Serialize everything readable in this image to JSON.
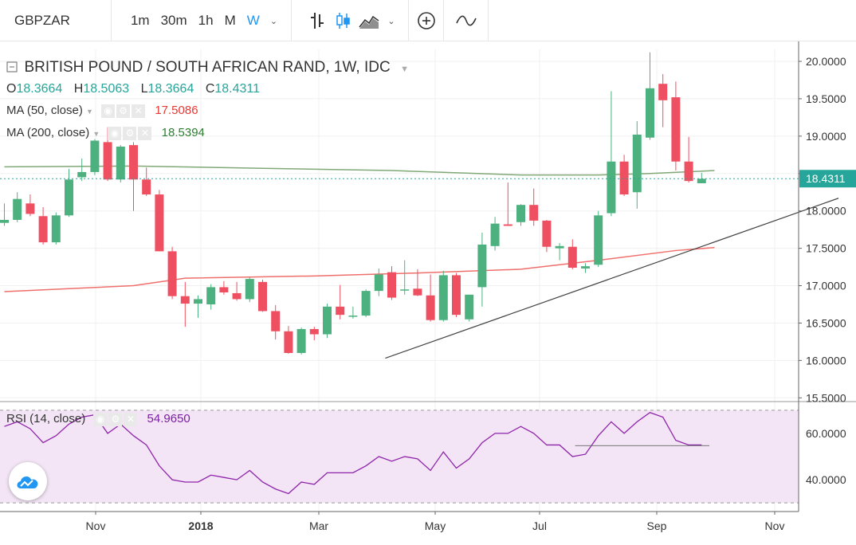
{
  "toolbar": {
    "symbol": "GBPZAR",
    "intervals": [
      "1m",
      "30m",
      "1h",
      "M",
      "W"
    ],
    "active_interval": "W"
  },
  "legend": {
    "title": "BRITISH POUND / SOUTH AFRICAN RAND, 1W, IDC",
    "ohlc": [
      {
        "k": "O",
        "v": "18.3664"
      },
      {
        "k": "H",
        "v": "18.5063"
      },
      {
        "k": "L",
        "v": "18.3664"
      },
      {
        "k": "C",
        "v": "18.4311"
      }
    ],
    "ma50": {
      "label": "MA (50, close)",
      "value": "17.5086",
      "color": "#e53935"
    },
    "ma200": {
      "label": "MA (200, close)",
      "value": "18.5394",
      "color": "#2e7d32"
    },
    "rsi": {
      "label": "RSI (14, close)",
      "value": "54.9650",
      "color": "#7b1fa2"
    }
  },
  "chart_data": {
    "type": "candlestick",
    "price_axis": [
      "20.0000",
      "19.5000",
      "19.0000",
      "18.5000",
      "18.0000",
      "17.5000",
      "17.0000",
      "16.5000",
      "16.0000",
      "15.5000"
    ],
    "price_range": [
      15.45,
      20.16
    ],
    "last_price": "18.4311",
    "time_axis": [
      "Nov",
      "2018",
      "Mar",
      "May",
      "Jul",
      "Sep",
      "Nov"
    ],
    "candles": [
      {
        "o": 17.84,
        "h": 18.1,
        "l": 17.8,
        "c": 17.88
      },
      {
        "o": 17.88,
        "h": 18.25,
        "l": 17.85,
        "c": 18.16
      },
      {
        "o": 18.1,
        "h": 18.22,
        "l": 17.93,
        "c": 17.96
      },
      {
        "o": 17.93,
        "h": 18.05,
        "l": 17.55,
        "c": 17.58
      },
      {
        "o": 17.58,
        "h": 17.98,
        "l": 17.55,
        "c": 17.94
      },
      {
        "o": 17.94,
        "h": 18.56,
        "l": 17.92,
        "c": 18.42
      },
      {
        "o": 18.45,
        "h": 18.7,
        "l": 18.4,
        "c": 18.52
      },
      {
        "o": 18.52,
        "h": 18.96,
        "l": 18.48,
        "c": 18.94
      },
      {
        "o": 18.92,
        "h": 19.12,
        "l": 18.4,
        "c": 18.42
      },
      {
        "o": 18.42,
        "h": 18.88,
        "l": 18.38,
        "c": 18.86
      },
      {
        "o": 18.88,
        "h": 18.92,
        "l": 18.0,
        "c": 18.42
      },
      {
        "o": 18.42,
        "h": 18.58,
        "l": 18.2,
        "c": 18.22
      },
      {
        "o": 18.22,
        "h": 18.28,
        "l": 17.46,
        "c": 17.46
      },
      {
        "o": 17.46,
        "h": 17.52,
        "l": 16.82,
        "c": 16.86
      },
      {
        "o": 16.86,
        "h": 17.05,
        "l": 16.45,
        "c": 16.76
      },
      {
        "o": 16.76,
        "h": 16.87,
        "l": 16.57,
        "c": 16.82
      },
      {
        "o": 16.75,
        "h": 17.02,
        "l": 16.68,
        "c": 16.98
      },
      {
        "o": 16.98,
        "h": 17.06,
        "l": 16.88,
        "c": 16.91
      },
      {
        "o": 16.9,
        "h": 17.05,
        "l": 16.8,
        "c": 16.82
      },
      {
        "o": 16.82,
        "h": 17.12,
        "l": 16.78,
        "c": 17.09
      },
      {
        "o": 17.05,
        "h": 17.08,
        "l": 16.65,
        "c": 16.66
      },
      {
        "o": 16.66,
        "h": 16.74,
        "l": 16.28,
        "c": 16.39
      },
      {
        "o": 16.39,
        "h": 16.46,
        "l": 16.09,
        "c": 16.1
      },
      {
        "o": 16.1,
        "h": 16.44,
        "l": 16.08,
        "c": 16.42
      },
      {
        "o": 16.42,
        "h": 16.45,
        "l": 16.27,
        "c": 16.35
      },
      {
        "o": 16.35,
        "h": 16.76,
        "l": 16.3,
        "c": 16.72
      },
      {
        "o": 16.72,
        "h": 17.01,
        "l": 16.55,
        "c": 16.61
      },
      {
        "o": 16.6,
        "h": 16.72,
        "l": 16.56,
        "c": 16.6
      },
      {
        "o": 16.6,
        "h": 16.95,
        "l": 16.58,
        "c": 16.93
      },
      {
        "o": 16.93,
        "h": 17.23,
        "l": 16.86,
        "c": 17.15
      },
      {
        "o": 17.18,
        "h": 17.26,
        "l": 16.81,
        "c": 16.84
      },
      {
        "o": 16.94,
        "h": 17.34,
        "l": 16.88,
        "c": 16.95
      },
      {
        "o": 16.96,
        "h": 17.22,
        "l": 16.86,
        "c": 16.87
      },
      {
        "o": 16.87,
        "h": 17.15,
        "l": 16.52,
        "c": 16.54
      },
      {
        "o": 16.54,
        "h": 17.2,
        "l": 16.52,
        "c": 17.14
      },
      {
        "o": 17.14,
        "h": 17.17,
        "l": 16.58,
        "c": 16.61
      },
      {
        "o": 16.55,
        "h": 16.88,
        "l": 16.52,
        "c": 16.88
      },
      {
        "o": 16.98,
        "h": 17.71,
        "l": 16.72,
        "c": 17.55
      },
      {
        "o": 17.53,
        "h": 17.92,
        "l": 17.47,
        "c": 17.83
      },
      {
        "o": 17.82,
        "h": 18.38,
        "l": 17.8,
        "c": 17.8
      },
      {
        "o": 17.85,
        "h": 18.09,
        "l": 17.8,
        "c": 18.08
      },
      {
        "o": 18.08,
        "h": 18.3,
        "l": 17.8,
        "c": 17.87
      },
      {
        "o": 17.87,
        "h": 17.88,
        "l": 17.45,
        "c": 17.52
      },
      {
        "o": 17.5,
        "h": 17.57,
        "l": 17.34,
        "c": 17.53
      },
      {
        "o": 17.52,
        "h": 17.62,
        "l": 17.22,
        "c": 17.24
      },
      {
        "o": 17.23,
        "h": 17.3,
        "l": 17.17,
        "c": 17.26
      },
      {
        "o": 17.28,
        "h": 18.0,
        "l": 17.25,
        "c": 17.94
      },
      {
        "o": 17.97,
        "h": 19.6,
        "l": 17.93,
        "c": 18.66
      },
      {
        "o": 18.66,
        "h": 18.75,
        "l": 18.2,
        "c": 18.22
      },
      {
        "o": 18.25,
        "h": 19.2,
        "l": 18.03,
        "c": 19.02
      },
      {
        "o": 18.98,
        "h": 20.12,
        "l": 18.95,
        "c": 19.64
      },
      {
        "o": 19.7,
        "h": 19.83,
        "l": 19.12,
        "c": 19.48
      },
      {
        "o": 19.52,
        "h": 19.73,
        "l": 18.54,
        "c": 18.66
      },
      {
        "o": 18.66,
        "h": 18.99,
        "l": 18.38,
        "c": 18.4
      },
      {
        "o": 18.37,
        "h": 18.51,
        "l": 18.37,
        "c": 18.43
      }
    ],
    "ma50": [
      [
        0,
        16.92
      ],
      [
        10,
        17.0
      ],
      [
        14,
        17.1
      ],
      [
        24,
        17.13
      ],
      [
        32,
        17.17
      ],
      [
        40,
        17.22
      ],
      [
        46,
        17.34
      ],
      [
        52,
        17.47
      ],
      [
        55,
        17.51
      ]
    ],
    "ma200": [
      [
        0,
        18.59
      ],
      [
        10,
        18.6
      ],
      [
        20,
        18.57
      ],
      [
        30,
        18.54
      ],
      [
        40,
        18.48
      ],
      [
        46,
        18.48
      ],
      [
        50,
        18.5
      ],
      [
        55,
        18.54
      ]
    ],
    "trendline": {
      "from": [
        29.5,
        16.03
      ],
      "to": [
        64.6,
        18.17
      ]
    },
    "rsi_axis": [
      "60.0000",
      "40.0000"
    ],
    "rsi_range": [
      28,
      72
    ],
    "rsi_bands": [
      30,
      70
    ],
    "rsi_values": [
      63,
      65,
      62,
      56,
      59,
      64,
      67,
      68,
      60,
      64,
      59,
      55,
      46,
      40,
      39,
      39,
      42,
      41,
      40,
      44,
      39,
      36,
      34,
      39,
      38,
      43,
      43,
      43,
      46,
      50,
      48,
      50,
      49,
      44,
      52,
      45,
      49,
      56,
      60,
      60,
      63,
      60,
      55,
      55,
      50,
      51,
      59,
      65,
      60,
      65,
      69,
      67,
      57,
      55,
      55
    ],
    "rsi_divergence": {
      "from": [
        44.2,
        54.7
      ],
      "to": [
        54.6,
        54.7
      ]
    }
  }
}
